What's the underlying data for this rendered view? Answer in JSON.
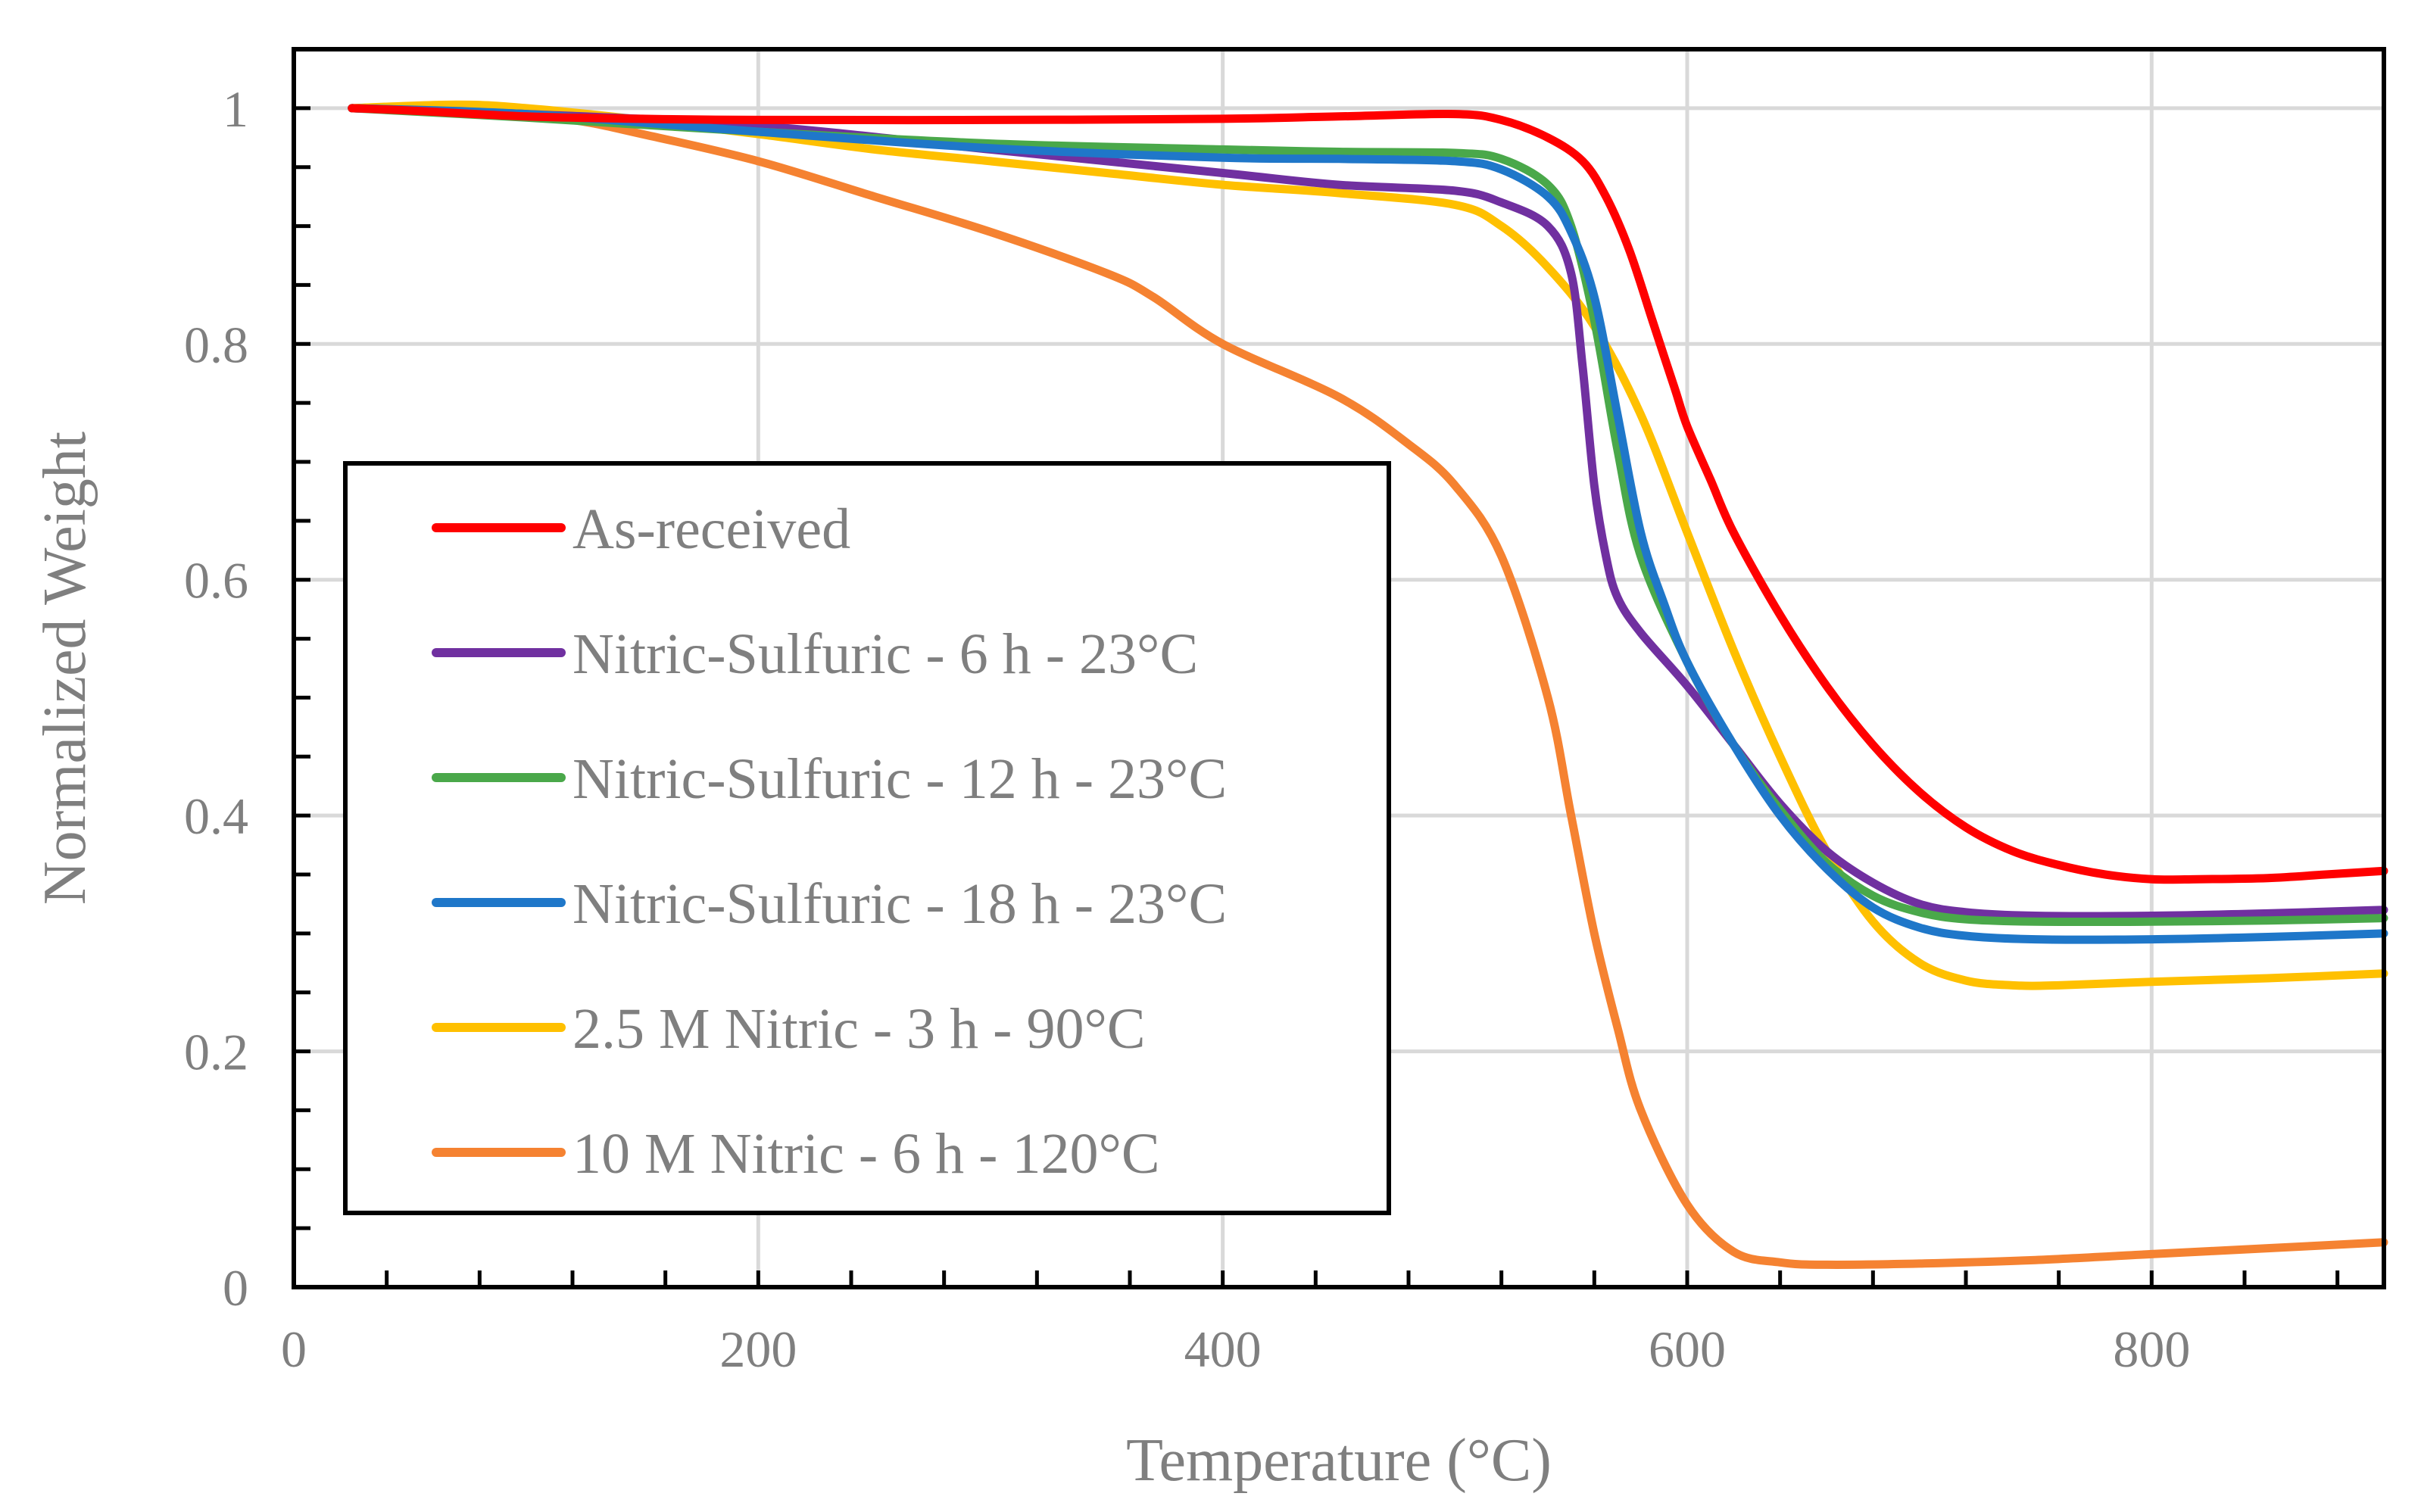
{
  "chart_data": {
    "type": "line",
    "title": "",
    "xlabel": "Temperature (°C)",
    "ylabel": "Normalized Weight",
    "xlim": [
      0,
      900
    ],
    "ylim": [
      0,
      1.05
    ],
    "grid": true,
    "legend_position": "left-center",
    "x_ticks": [
      0,
      200,
      400,
      600,
      800
    ],
    "x_tick_labels": [
      "0",
      "200",
      "400",
      "600",
      "800"
    ],
    "y_ticks": [
      0,
      0.2,
      0.4,
      0.6,
      0.8,
      1
    ],
    "y_tick_labels": [
      "0",
      "0.2",
      "0.4",
      "0.6",
      "0.8",
      "1"
    ],
    "series": [
      {
        "name": "As-received",
        "color": "#ff0000",
        "x": [
          25,
          50,
          100,
          150,
          200,
          300,
          400,
          450,
          500,
          520,
          540,
          555,
          565,
          575,
          585,
          590,
          595,
          600,
          610,
          620,
          640,
          660,
          680,
          700,
          720,
          740,
          760,
          780,
          800,
          820,
          850,
          875,
          900
        ],
        "y": [
          1.0,
          0.998,
          0.993,
          0.991,
          0.99,
          0.99,
          0.991,
          0.993,
          0.995,
          0.99,
          0.975,
          0.955,
          0.925,
          0.88,
          0.82,
          0.79,
          0.76,
          0.73,
          0.685,
          0.64,
          0.57,
          0.51,
          0.46,
          0.42,
          0.39,
          0.37,
          0.358,
          0.35,
          0.346,
          0.346,
          0.347,
          0.35,
          0.353
        ]
      },
      {
        "name": "Nitric-Sulfuric - 6 h - 23°C",
        "color": "#7030a0",
        "x": [
          25,
          100,
          200,
          300,
          400,
          450,
          500,
          520,
          540,
          550,
          555,
          560,
          565,
          570,
          580,
          600,
          620,
          640,
          660,
          680,
          700,
          720,
          750,
          800,
          850,
          900
        ],
        "y": [
          1.0,
          0.995,
          0.985,
          0.965,
          0.945,
          0.935,
          0.93,
          0.92,
          0.9,
          0.86,
          0.78,
          0.68,
          0.62,
          0.585,
          0.555,
          0.51,
          0.46,
          0.41,
          0.37,
          0.343,
          0.325,
          0.318,
          0.315,
          0.315,
          0.317,
          0.32
        ]
      },
      {
        "name": "Nitric-Sulfuric - 12 h - 23°C",
        "color": "#4aa84a",
        "x": [
          25,
          100,
          200,
          300,
          400,
          450,
          500,
          520,
          540,
          550,
          560,
          570,
          580,
          600,
          620,
          640,
          660,
          680,
          700,
          720,
          750,
          800,
          850,
          900
        ],
        "y": [
          1.0,
          0.992,
          0.98,
          0.97,
          0.965,
          0.963,
          0.962,
          0.957,
          0.935,
          0.9,
          0.82,
          0.71,
          0.62,
          0.53,
          0.46,
          0.405,
          0.36,
          0.332,
          0.318,
          0.312,
          0.31,
          0.31,
          0.311,
          0.313
        ]
      },
      {
        "name": "Nitric-Sulfuric - 18 h - 23°C",
        "color": "#1f77c9",
        "x": [
          25,
          100,
          200,
          300,
          400,
          450,
          500,
          520,
          540,
          550,
          560,
          570,
          580,
          590,
          600,
          620,
          640,
          660,
          680,
          700,
          720,
          750,
          800,
          850,
          900
        ],
        "y": [
          1.0,
          0.995,
          0.98,
          0.966,
          0.958,
          0.957,
          0.955,
          0.948,
          0.925,
          0.895,
          0.84,
          0.74,
          0.64,
          0.58,
          0.53,
          0.46,
          0.4,
          0.355,
          0.322,
          0.305,
          0.298,
          0.295,
          0.295,
          0.297,
          0.3
        ]
      },
      {
        "name": "2.5 M Nitric - 3 h - 90°C",
        "color": "#ffc000",
        "x": [
          25,
          70,
          100,
          150,
          200,
          250,
          300,
          350,
          400,
          450,
          500,
          520,
          540,
          560,
          580,
          600,
          620,
          640,
          660,
          680,
          700,
          720,
          740,
          760,
          800,
          850,
          900
        ],
        "y": [
          1.0,
          1.003,
          1.0,
          0.99,
          0.978,
          0.965,
          0.955,
          0.945,
          0.935,
          0.928,
          0.918,
          0.9,
          0.865,
          0.815,
          0.74,
          0.64,
          0.54,
          0.45,
          0.37,
          0.31,
          0.275,
          0.26,
          0.256,
          0.256,
          0.259,
          0.262,
          0.266
        ]
      },
      {
        "name": "10 M Nitric - 6 h - 120°C",
        "color": "#f58231",
        "x": [
          25,
          80,
          120,
          150,
          200,
          250,
          300,
          350,
          370,
          400,
          450,
          480,
          500,
          520,
          540,
          550,
          560,
          570,
          580,
          600,
          620,
          640,
          660,
          700,
          750,
          800,
          850,
          900
        ],
        "y": [
          1.0,
          0.998,
          0.99,
          0.978,
          0.955,
          0.925,
          0.895,
          0.86,
          0.84,
          0.8,
          0.755,
          0.715,
          0.68,
          0.62,
          0.5,
          0.4,
          0.3,
          0.22,
          0.15,
          0.07,
          0.03,
          0.021,
          0.019,
          0.02,
          0.023,
          0.028,
          0.033,
          0.038
        ]
      }
    ]
  }
}
